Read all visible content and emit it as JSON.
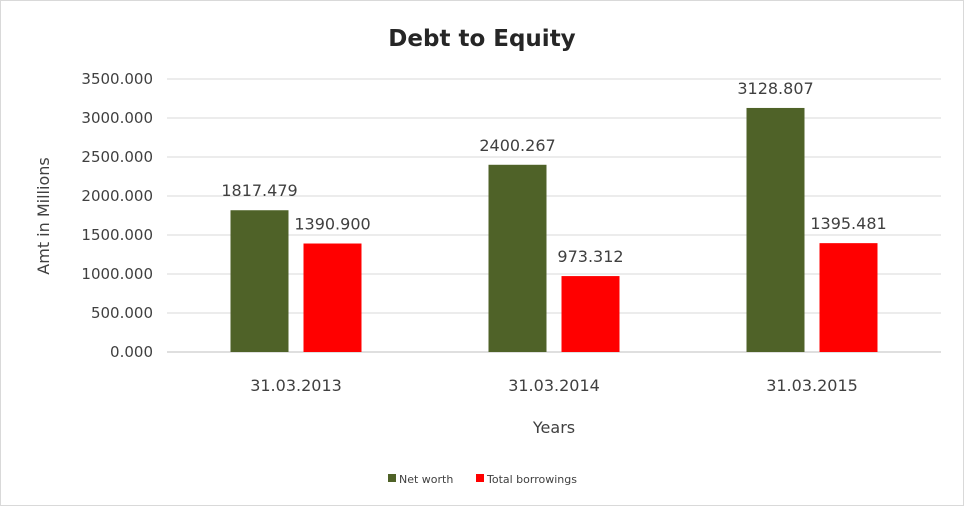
{
  "chart_data": {
    "type": "bar",
    "title": "Debt to Equity",
    "xlabel": "Years",
    "ylabel": "Amt in Millions",
    "categories": [
      "31.03.2013",
      "31.03.2014",
      "31.03.2015"
    ],
    "series": [
      {
        "name": "Net worth",
        "color": "#4f6228",
        "values": [
          1817.479,
          2400.267,
          3128.807
        ],
        "labels": [
          "1817.479",
          "2400.267",
          "3128.807"
        ]
      },
      {
        "name": "Total borrowings",
        "color": "#ff0000",
        "values": [
          1390.9,
          973.312,
          1395.481
        ],
        "labels": [
          "1390.900",
          "973.312",
          "1395.481"
        ]
      }
    ],
    "ylim": [
      0,
      3500
    ],
    "yticks": [
      "0.000",
      "500.000",
      "1000.000",
      "1500.000",
      "2000.000",
      "2500.000",
      "3000.000",
      "3500.000"
    ],
    "grid": true,
    "legend_position": "bottom"
  }
}
